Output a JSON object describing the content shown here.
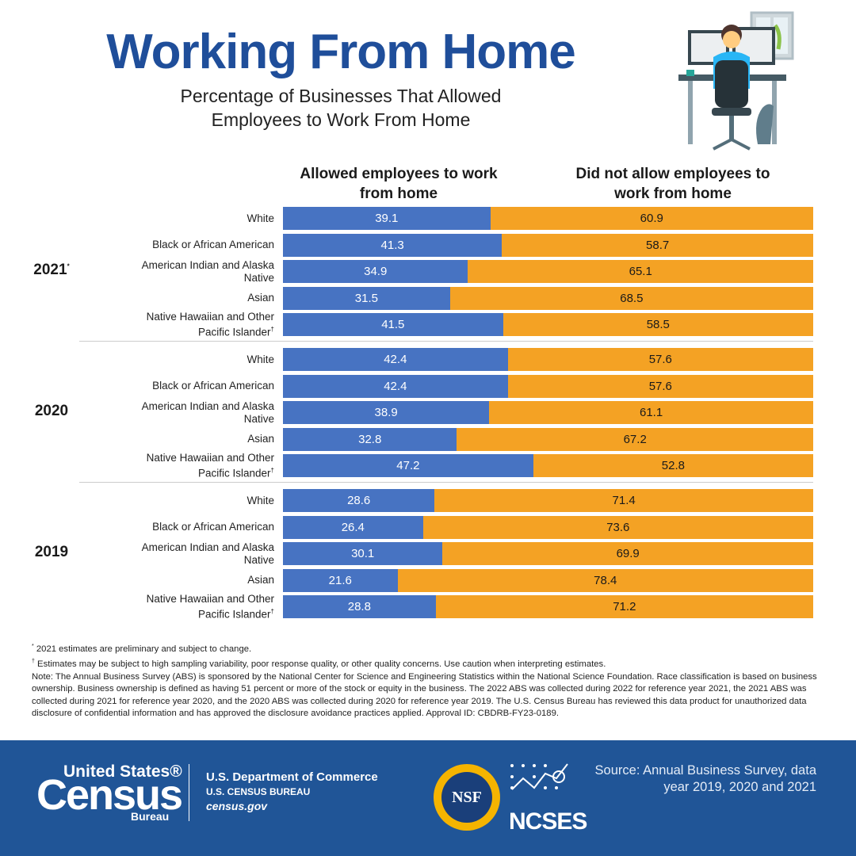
{
  "chart_data": {
    "type": "bar",
    "orientation": "horizontal",
    "stacked": true,
    "title": "Working From Home",
    "subtitle": "Percentage of Businesses That Allowed Employees to Work From Home",
    "xlim": [
      0,
      100
    ],
    "series": [
      {
        "name": "Allowed employees to work from home",
        "color": "#4773c2"
      },
      {
        "name": "Did not allow employees to work from home",
        "color": "#f4a224"
      }
    ],
    "groups": [
      {
        "label": "2021",
        "marker": "*",
        "categories": [
          {
            "label": "White"
          },
          {
            "label": "Black or African American"
          },
          {
            "label": "American Indian and Alaska Native"
          },
          {
            "label": "Asian"
          },
          {
            "label": "Native Hawaiian and Other Pacific Islander",
            "marker": "†"
          }
        ],
        "series": [
          {
            "values": [
              39.1,
              41.3,
              34.9,
              31.5,
              41.5
            ]
          },
          {
            "values": [
              60.9,
              58.7,
              65.1,
              68.5,
              58.5
            ]
          }
        ]
      },
      {
        "label": "2020",
        "categories": [
          {
            "label": "White"
          },
          {
            "label": "Black or African American"
          },
          {
            "label": "American Indian and Alaska Native"
          },
          {
            "label": "Asian"
          },
          {
            "label": "Native Hawaiian and Other Pacific Islander",
            "marker": "†"
          }
        ],
        "series": [
          {
            "values": [
              42.4,
              42.4,
              38.9,
              32.8,
              47.2
            ]
          },
          {
            "values": [
              57.6,
              57.6,
              61.1,
              67.2,
              52.8
            ]
          }
        ]
      },
      {
        "label": "2019",
        "categories": [
          {
            "label": "White"
          },
          {
            "label": "Black or African American"
          },
          {
            "label": "American Indian and Alaska Native"
          },
          {
            "label": "Asian"
          },
          {
            "label": "Native Hawaiian and Other Pacific Islander",
            "marker": "†"
          }
        ],
        "series": [
          {
            "values": [
              28.6,
              26.4,
              30.1,
              21.6,
              28.8
            ]
          },
          {
            "values": [
              71.4,
              73.6,
              69.9,
              78.4,
              71.2
            ]
          }
        ]
      }
    ]
  },
  "notes": [
    {
      "marker": "*",
      "text": "2021 estimates are preliminary and subject to change."
    },
    {
      "marker": "†",
      "text": "Estimates may be subject to high sampling variability, poor response quality, or other quality concerns. Use caution when interpreting estimates."
    },
    {
      "text": "Note: The Annual Business Survey (ABS) is sponsored by the National Center for Science and Engineering Statistics within the National Science Foundation. Race classification is based on business ownership. Business ownership is defined as having 51 percent or more of the stock or equity in the business. The 2022 ABS was collected during 2022 for reference year 2021, the 2021 ABS was collected during 2021 for reference year 2020, and the 2020 ABS was collected during 2020 for reference year 2019. The U.S. Census Bureau has reviewed this data product for unauthorized data disclosure of confidential information and has approved the disclosure avoidance practices applied. Approval ID: CBDRB-FY23-0189."
    }
  ],
  "footer": {
    "census_top": "United States®",
    "census_main": "Census",
    "census_bottom": "Bureau",
    "department": "U.S. Department of Commerce",
    "bureau": "U.S. CENSUS BUREAU",
    "website": "census.gov",
    "nsf": "NSF",
    "ncses": "NCSES",
    "source": "Source: Annual Business Survey, data year 2019, 2020 and 2021"
  }
}
